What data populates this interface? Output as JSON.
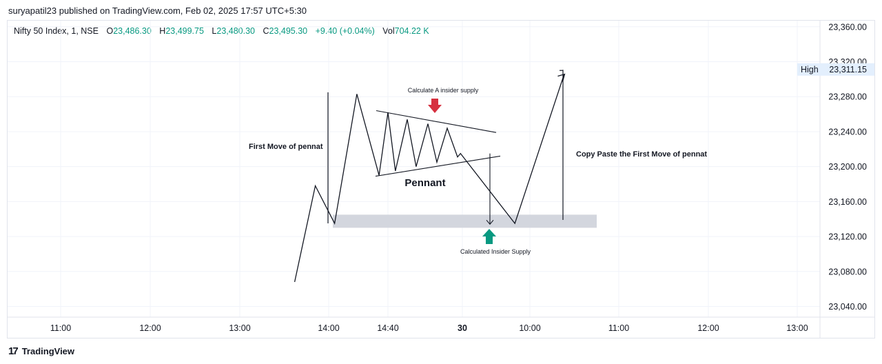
{
  "header": {
    "published_by": "suryapatil23 published on TradingView.com, Feb 02, 2025 17:57 UTC+5:30"
  },
  "legend": {
    "symbol": "Nifty 50 Index, 1, NSE",
    "open_label": "O",
    "open": "23,486.30",
    "high_label": "H",
    "high": "23,499.75",
    "low_label": "L",
    "low": "23,480.30",
    "close_label": "C",
    "close": "23,495.30",
    "change": "+9.40 (+0.04%)",
    "vol_label": "Vol",
    "vol": "704.22 K"
  },
  "footer": {
    "brand": "TradingView",
    "logo_icon": "tradingview-logo-icon"
  },
  "colors": {
    "up": "#089981",
    "down": "#f23645",
    "arrow_red": "#d6303f",
    "arrow_green": "#089981",
    "zone": "#d1d4dc",
    "high_bg": "#e3effd"
  },
  "chart_data": {
    "type": "line",
    "title": "",
    "ylim": [
      23020,
      23380
    ],
    "y_ticks": [
      "23,040.00",
      "23,080.00",
      "23,120.00",
      "23,160.00",
      "23,200.00",
      "23,240.00",
      "23,280.00",
      "23,320.00",
      "23,360.00"
    ],
    "y_tick_values": [
      23040,
      23080,
      23120,
      23160,
      23200,
      23240,
      23280,
      23320,
      23360
    ],
    "x_ticks": [
      "11:00",
      "12:00",
      "13:00",
      "14:00",
      "14:40",
      "30",
      "10:00",
      "11:00",
      "12:00",
      "13:00"
    ],
    "bold_x_ticks": [
      "30"
    ],
    "price_path": {
      "x": [
        "13:37",
        "13:51",
        "14:04",
        "14:19",
        "14:34",
        "14:40",
        "14:45",
        "14:53",
        "14:59",
        "15:07",
        "15:13",
        "15:20",
        "15:27",
        "15:29",
        "09:50",
        "10:23"
      ],
      "y": [
        23068,
        23178,
        23135,
        23283,
        23190,
        23262,
        23195,
        23254,
        23200,
        23249,
        23205,
        23244,
        23211,
        23215,
        23135,
        23305
      ]
    },
    "annotations": {
      "first_move_text": "First Move of pennat",
      "pennant_text": "Pennant",
      "calc_supply_text": "Calculate A insider supply",
      "calculated_supply_text": "Calculated Insider Supply",
      "copy_paste_text": "Copy Paste the First Move of pennat",
      "first_move_line": {
        "y_from": 23285,
        "y_to": 23135
      },
      "copy_paste_line": {
        "y_from": 23139,
        "y_to": 23310
      },
      "supply_zone": {
        "y_low": 23130,
        "y_high": 23145
      },
      "target_arrow": {
        "y_from": 23215,
        "y_to": 23134
      },
      "pennant_upper": {
        "y_from": 23264,
        "y_to": 23239
      },
      "pennant_lower": {
        "y_from": 23189,
        "y_to": 23212
      }
    },
    "high_marker": {
      "label": "High",
      "value": "23,311.15",
      "y": 23311.15
    }
  }
}
